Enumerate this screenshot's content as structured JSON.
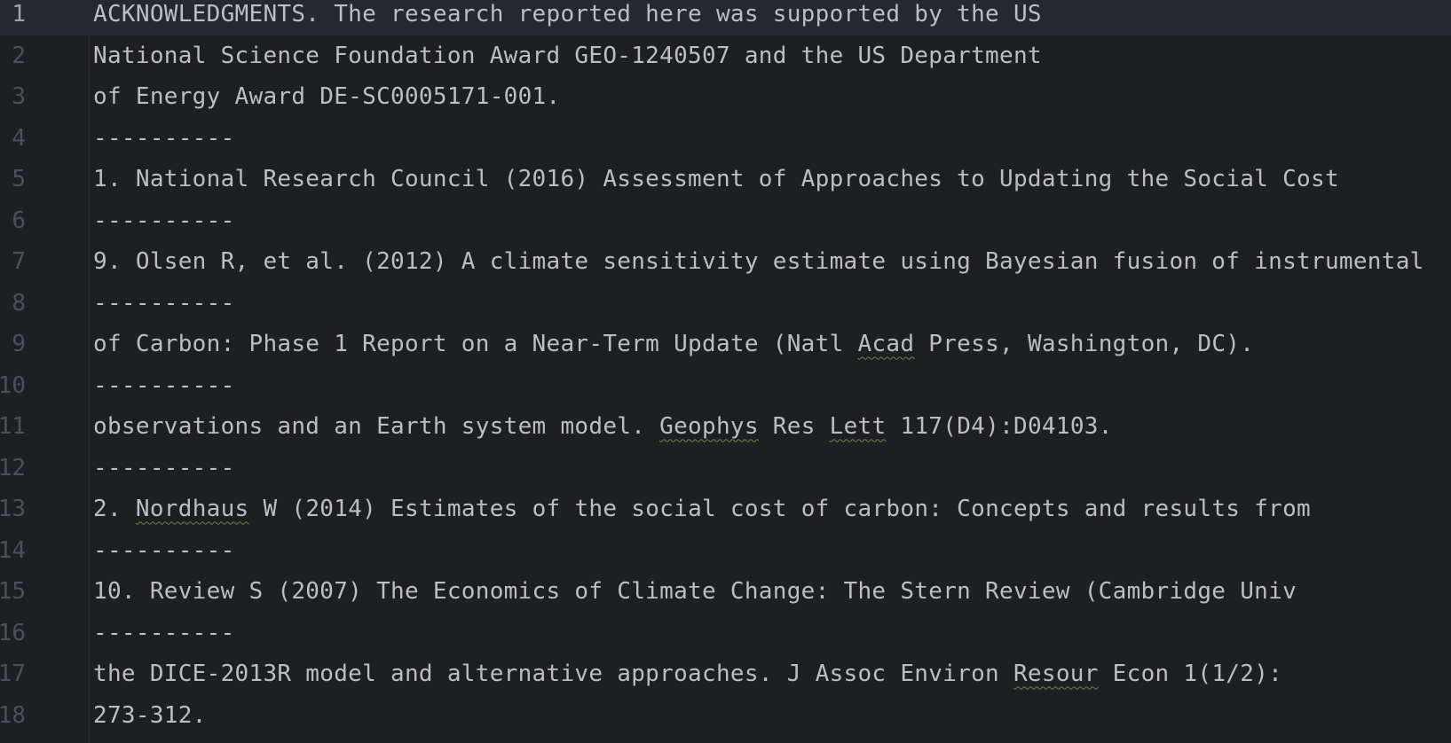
{
  "editor": {
    "lines": [
      {
        "number": "1",
        "parts": [
          {
            "text": "ACKNOWLEDGMENTS. The research reported here was supported by the US"
          }
        ]
      },
      {
        "number": "2",
        "parts": [
          {
            "text": "National Science Foundation Award GEO-1240507 and the US Department"
          }
        ]
      },
      {
        "number": "3",
        "parts": [
          {
            "text": "of Energy Award DE-SC0005171-001."
          }
        ]
      },
      {
        "number": "4",
        "parts": [
          {
            "text": "----------"
          }
        ]
      },
      {
        "number": "5",
        "parts": [
          {
            "text": "1. National Research Council (2016) Assessment of Approaches to Updating the Social Cost"
          }
        ]
      },
      {
        "number": "6",
        "parts": [
          {
            "text": "----------"
          }
        ]
      },
      {
        "number": "7",
        "parts": [
          {
            "text": "9. Olsen R, et al. (2012) A climate sensitivity estimate using Bayesian fusion of instrumental"
          }
        ]
      },
      {
        "number": "8",
        "parts": [
          {
            "text": "----------"
          }
        ]
      },
      {
        "number": "9",
        "parts": [
          {
            "text": "of Carbon: Phase 1 Report on a Near-Term Update (Natl "
          },
          {
            "text": "Acad",
            "typo": true
          },
          {
            "text": " Press, Washington, DC)."
          }
        ]
      },
      {
        "number": "10",
        "parts": [
          {
            "text": "----------"
          }
        ]
      },
      {
        "number": "11",
        "parts": [
          {
            "text": "observations and an Earth system model. "
          },
          {
            "text": "Geophys",
            "typo": true
          },
          {
            "text": " Res "
          },
          {
            "text": "Lett",
            "typo": true
          },
          {
            "text": " 117(D4):D04103."
          }
        ]
      },
      {
        "number": "12",
        "parts": [
          {
            "text": "----------"
          }
        ]
      },
      {
        "number": "13",
        "parts": [
          {
            "text": "2. "
          },
          {
            "text": "Nordhaus",
            "typo": true
          },
          {
            "text": " W (2014) Estimates of the social cost of carbon: Concepts and results from"
          }
        ]
      },
      {
        "number": "14",
        "parts": [
          {
            "text": "----------"
          }
        ]
      },
      {
        "number": "15",
        "parts": [
          {
            "text": "10. Review S (2007) The Economics of Climate Change: The Stern Review (Cambridge Univ"
          }
        ]
      },
      {
        "number": "16",
        "parts": [
          {
            "text": "----------"
          }
        ]
      },
      {
        "number": "17",
        "parts": [
          {
            "text": "the DICE-2013R model and alternative approaches. J Assoc Environ "
          },
          {
            "text": "Resour",
            "typo": true
          },
          {
            "text": " Econ 1(1/2):"
          }
        ]
      },
      {
        "number": "18",
        "parts": [
          {
            "text": "273-312."
          }
        ]
      }
    ],
    "current_line": 1
  },
  "colors": {
    "background": "#1e1f22",
    "text": "#bcbec4",
    "line_number": "#4b5059",
    "current_line_bg": "#26282e",
    "typo_underline": "#6a8759"
  }
}
